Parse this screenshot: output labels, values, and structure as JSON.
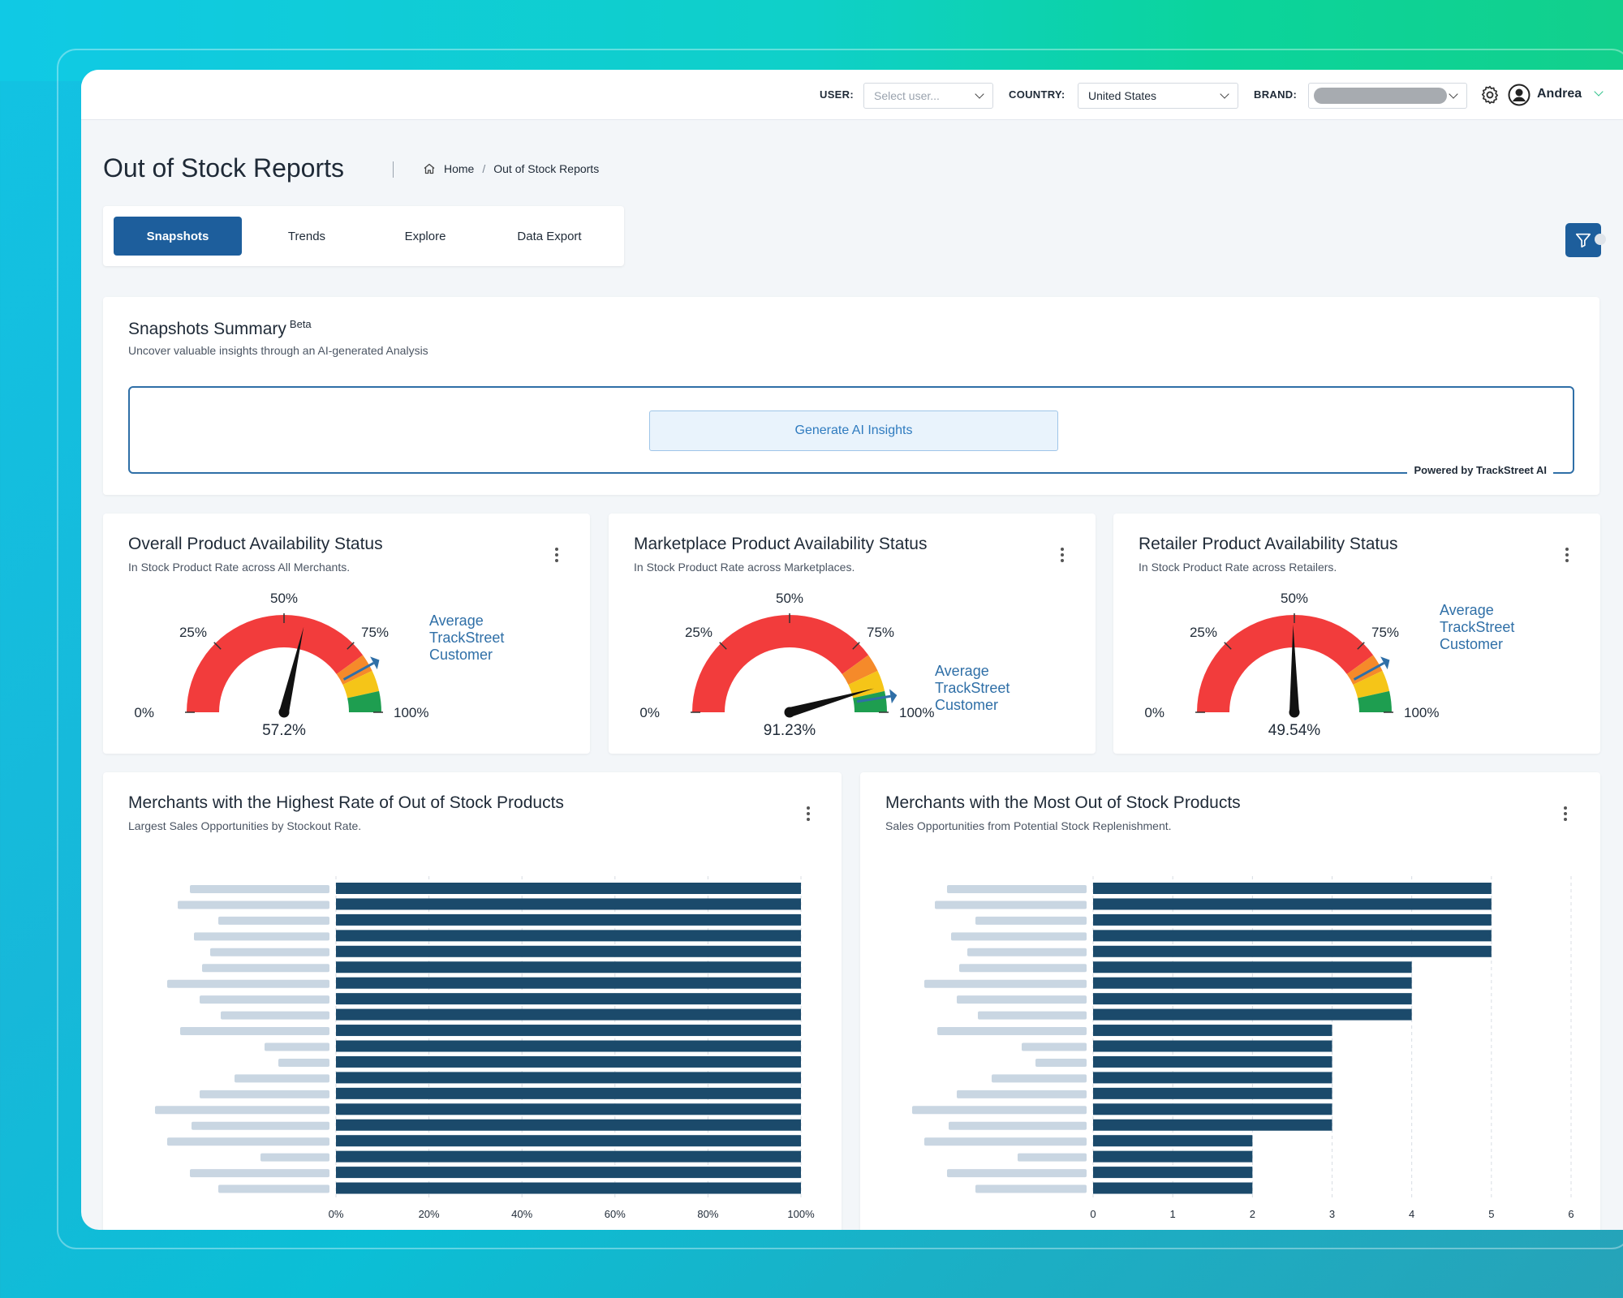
{
  "header": {
    "user_label": "USER:",
    "user_placeholder": "Select user...",
    "country_label": "COUNTRY:",
    "country_value": "United States",
    "brand_label": "BRAND:",
    "user_name": "Andrea",
    "accent": "#1d5e9c"
  },
  "page": {
    "title": "Out of Stock Reports",
    "breadcrumb": {
      "home": "Home",
      "sep": "/",
      "current": "Out of Stock Reports"
    }
  },
  "tabs": [
    {
      "label": "Snapshots",
      "active": true
    },
    {
      "label": "Trends",
      "active": false
    },
    {
      "label": "Explore",
      "active": false
    },
    {
      "label": "Data Export",
      "active": false
    }
  ],
  "summary": {
    "title": "Snapshots Summary",
    "badge": "Beta",
    "subtitle": "Uncover valuable insights through an AI-generated Analysis",
    "button": "Generate AI Insights",
    "powered": "Powered by TrackStreet AI"
  },
  "gauges": [
    {
      "title": "Overall Product Availability Status",
      "subtitle": "In Stock Product Rate across All Merchants.",
      "value_label": "57.2%",
      "value": 57.2,
      "average": 84,
      "avg_lines": [
        "Average",
        "TrackStreet",
        "Customer"
      ]
    },
    {
      "title": "Marketplace Product Availability Status",
      "subtitle": "In Stock Product Rate across Marketplaces.",
      "value_label": "91.23%",
      "value": 91.23,
      "average": 95,
      "avg_lines": [
        "Average",
        "TrackStreet",
        "Customer"
      ]
    },
    {
      "title": "Retailer Product Availability Status",
      "subtitle": "In Stock Product Rate across Retailers.",
      "value_label": "49.54%",
      "value": 49.54,
      "average": 84,
      "avg_lines": [
        "Average",
        "TrackStreet",
        "Customer"
      ]
    }
  ],
  "gauge_ticks": {
    "t0": "0%",
    "t25": "25%",
    "t50": "50%",
    "t75": "75%",
    "t100": "100%"
  },
  "gauge_colors": {
    "red": "#f23c3c",
    "orange": "#f58a2a",
    "yellow": "#f5c518",
    "green": "#1e9e50",
    "needle": "#111111",
    "marker": "#2f6fa7"
  },
  "chart_data": [
    {
      "type": "bar",
      "orientation": "horizontal",
      "title": "Merchants with the Highest Rate of Out of Stock Products",
      "subtitle": "Largest Sales Opportunities by Stockout Rate.",
      "x_ticks": [
        "0%",
        "20%",
        "40%",
        "60%",
        "80%",
        "100%"
      ],
      "xlim": [
        0,
        100
      ],
      "values": [
        100,
        100,
        100,
        100,
        100,
        100,
        100,
        100,
        100,
        100,
        100,
        100,
        100,
        100,
        100,
        100,
        100,
        100,
        100,
        100
      ],
      "bar_color": "#1b4a6b"
    },
    {
      "type": "bar",
      "orientation": "horizontal",
      "title": "Merchants with the Most Out of Stock Products",
      "subtitle": "Sales Opportunities from Potential Stock Replenishment.",
      "x_ticks": [
        "0",
        "1",
        "2",
        "3",
        "4",
        "5",
        "6"
      ],
      "xlim": [
        0,
        6
      ],
      "values": [
        5,
        5,
        5,
        5,
        5,
        4,
        4,
        4,
        4,
        3,
        3,
        3,
        3,
        3,
        3,
        3,
        2,
        2,
        2,
        2
      ],
      "bar_color": "#1b4a6b"
    }
  ]
}
